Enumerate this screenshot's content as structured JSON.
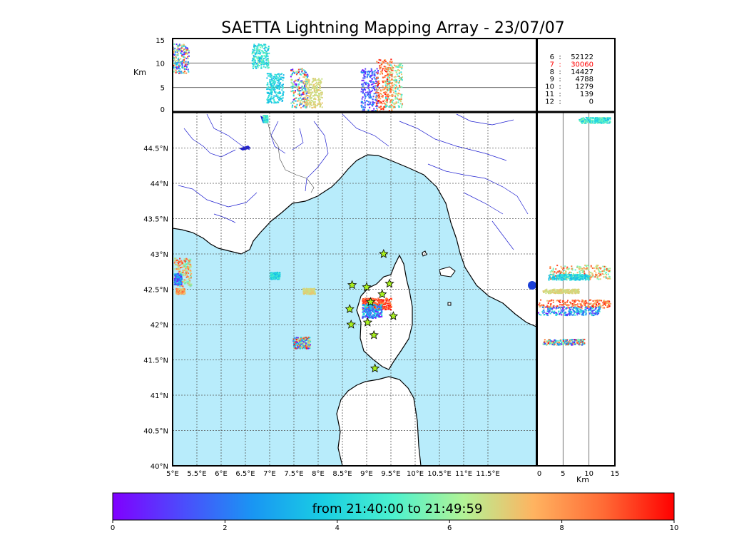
{
  "title": "SAETTA Lightning Mapping Array - 23/07/07",
  "colors": {
    "sea": "#b8ecfb",
    "land": "#ffffff",
    "river": "#1f1fd0",
    "grid": "#555555",
    "star_fill": "#a8f020",
    "station_count_highlight": "#ff0000"
  },
  "station_counts": [
    {
      "stations": "6",
      "sep": ":",
      "count": "52122",
      "highlight": false
    },
    {
      "stations": "7",
      "sep": ":",
      "count": "30060",
      "highlight": true
    },
    {
      "stations": "8",
      "sep": ":",
      "count": "14427",
      "highlight": false
    },
    {
      "stations": "9",
      "sep": ":",
      "count": "4788",
      "highlight": false
    },
    {
      "stations": "10",
      "sep": ":",
      "count": "1279",
      "highlight": false
    },
    {
      "stations": "11",
      "sep": ":",
      "count": "139",
      "highlight": false
    },
    {
      "stations": "12",
      "sep": ":",
      "count": "0",
      "highlight": false
    }
  ],
  "chart_data": [
    {
      "type": "scatter",
      "panel": "map",
      "x_range": [
        5,
        12.5
      ],
      "y_range": [
        40,
        45
      ],
      "x_ticks": [
        "5°E",
        "5.5°E",
        "6°E",
        "6.5°E",
        "7°E",
        "7.5°E",
        "8°E",
        "8.5°E",
        "9°E",
        "9.5°E",
        "10°E",
        "10.5°E",
        "11°E",
        "11.5°E"
      ],
      "y_ticks": [
        "40°N",
        "40.5°N",
        "41°N",
        "41.5°N",
        "42°N",
        "42.5°N",
        "43°N",
        "43.5°N",
        "44°N",
        "44.5°N"
      ],
      "grid": true,
      "stations": [
        {
          "lon": 9.35,
          "lat": 43.0
        },
        {
          "lon": 8.7,
          "lat": 42.56
        },
        {
          "lon": 9.0,
          "lat": 42.53
        },
        {
          "lon": 9.47,
          "lat": 42.58
        },
        {
          "lon": 9.32,
          "lat": 42.43
        },
        {
          "lon": 9.08,
          "lat": 42.32
        },
        {
          "lon": 8.65,
          "lat": 42.22
        },
        {
          "lon": 8.68,
          "lat": 42.0
        },
        {
          "lon": 9.02,
          "lat": 42.03
        },
        {
          "lon": 9.55,
          "lat": 42.12
        },
        {
          "lon": 9.15,
          "lat": 41.85
        },
        {
          "lon": 9.17,
          "lat": 41.38
        }
      ],
      "clusters": [
        {
          "lon": 5.2,
          "lat": 42.75,
          "dlon": 0.35,
          "dlat": 0.2,
          "t": [
            5,
            9.5
          ]
        },
        {
          "lon": 5.1,
          "lat": 42.65,
          "dlon": 0.15,
          "dlat": 0.08,
          "t": [
            0,
            4
          ]
        },
        {
          "lon": 5.15,
          "lat": 42.48,
          "dlon": 0.18,
          "dlat": 0.04,
          "t": [
            6,
            9
          ]
        },
        {
          "lon": 7.1,
          "lat": 42.7,
          "dlon": 0.2,
          "dlat": 0.05,
          "t": [
            3,
            5
          ]
        },
        {
          "lon": 7.8,
          "lat": 42.48,
          "dlon": 0.25,
          "dlat": 0.04,
          "t": [
            6.5,
            7.2
          ]
        },
        {
          "lon": 7.65,
          "lat": 41.75,
          "dlon": 0.35,
          "dlat": 0.08,
          "t": [
            0,
            10
          ]
        },
        {
          "lon": 9.2,
          "lat": 42.3,
          "dlon": 0.6,
          "dlat": 0.08,
          "t": [
            8,
            10
          ]
        },
        {
          "lon": 9.1,
          "lat": 42.2,
          "dlon": 0.4,
          "dlat": 0.1,
          "t": [
            0,
            5
          ]
        },
        {
          "lon": 6.9,
          "lat": 44.92,
          "dlon": 0.1,
          "dlat": 0.05,
          "t": [
            3,
            6
          ]
        }
      ]
    },
    {
      "type": "scatter",
      "panel": "altitude-vs-longitude",
      "ylabel": "Km",
      "x_range": [
        5,
        12.5
      ],
      "y_range": [
        0,
        15
      ],
      "y_ticks": [
        "0",
        "5",
        "10",
        "15"
      ],
      "hlines": [
        5,
        10
      ]
    },
    {
      "type": "scatter",
      "panel": "latitude-vs-altitude",
      "xlabel": "Km",
      "x_range": [
        0,
        15
      ],
      "x_ticks": [
        "0",
        "5",
        "10",
        "15"
      ],
      "vlines": [
        5,
        10
      ],
      "y_range": [
        40,
        45
      ]
    },
    {
      "type": "heatmap",
      "panel": "colorbar",
      "label": "from 21:40:00 to 21:49:59",
      "range": [
        0,
        10
      ],
      "ticks": [
        "0",
        "2",
        "4",
        "6",
        "8",
        "10"
      ],
      "colormap": "rainbow"
    }
  ]
}
